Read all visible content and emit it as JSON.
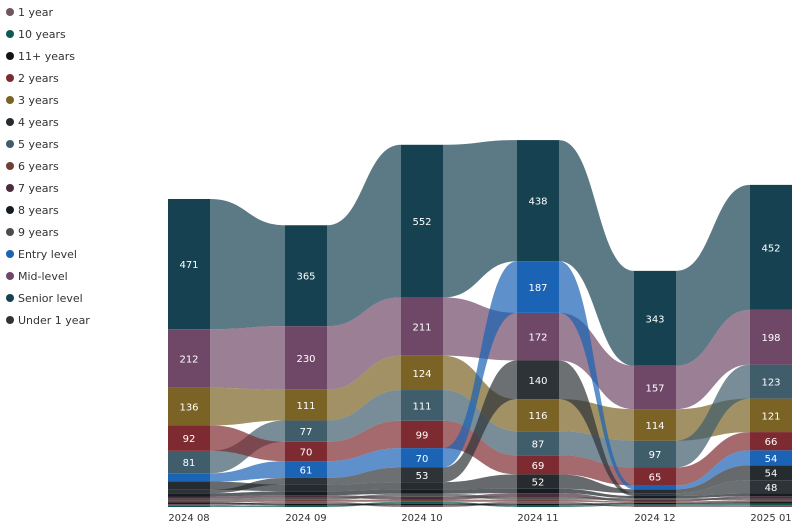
{
  "chart_data": {
    "type": "ribbon",
    "categories": [
      "2024 08",
      "2024 09",
      "2024 10",
      "2024 11",
      "2024 12",
      "2025 01"
    ],
    "legend_position": "left",
    "series": [
      {
        "name": "1 year",
        "color": "#6f5660",
        "values": [
          6,
          7,
          6,
          7,
          5,
          6
        ]
      },
      {
        "name": "10 years",
        "color": "#0c5a52",
        "values": [
          5,
          6,
          7,
          6,
          5,
          6
        ]
      },
      {
        "name": "11+ years",
        "color": "#111416",
        "values": [
          6,
          6,
          6,
          6,
          5,
          6
        ]
      },
      {
        "name": "2 years",
        "color": "#7d2b30",
        "values": [
          92,
          70,
          99,
          69,
          65,
          66
        ]
      },
      {
        "name": "3 years",
        "color": "#7a6324",
        "values": [
          136,
          111,
          124,
          116,
          114,
          121
        ]
      },
      {
        "name": "4 years",
        "color": "#252b2e",
        "values": [
          30,
          24,
          26,
          52,
          14,
          54
        ]
      },
      {
        "name": "5 years",
        "color": "#3f5d6b",
        "values": [
          81,
          77,
          111,
          87,
          97,
          123
        ]
      },
      {
        "name": "6 years",
        "color": "#6f3f35",
        "values": [
          6,
          7,
          8,
          7,
          5,
          6
        ]
      },
      {
        "name": "7 years",
        "color": "#4a2c3d",
        "values": [
          8,
          9,
          10,
          14,
          6,
          8
        ]
      },
      {
        "name": "8 years",
        "color": "#151d22",
        "values": [
          12,
          14,
          16,
          16,
          8,
          10
        ]
      },
      {
        "name": "9 years",
        "color": "#4c4c4c",
        "values": [
          7,
          8,
          11,
          10,
          6,
          7
        ]
      },
      {
        "name": "Entry level",
        "color": "#1a63b5",
        "values": [
          30,
          61,
          70,
          187,
          14,
          54
        ]
      },
      {
        "name": "Mid-level",
        "color": "#6f4868",
        "values": [
          212,
          230,
          211,
          172,
          157,
          198
        ]
      },
      {
        "name": "Senior level",
        "color": "#164151",
        "values": [
          471,
          365,
          552,
          438,
          343,
          452
        ]
      },
      {
        "name": "Under 1 year",
        "color": "#2e3338",
        "values": [
          12,
          24,
          53,
          140,
          10,
          48
        ]
      }
    ],
    "visible_labels": [
      {
        "series": "Senior level",
        "values": [
          "471",
          "365",
          "552",
          "438",
          "343",
          "452"
        ]
      },
      {
        "series": "Mid-level",
        "values": [
          "212",
          "230",
          "211",
          "172",
          "157",
          "198"
        ]
      },
      {
        "series": "3 years",
        "values": [
          "136",
          "111",
          "124",
          "116",
          "114",
          "121"
        ]
      },
      {
        "series": "5 years",
        "values": [
          "81",
          "77",
          "111",
          "87",
          "97",
          "123"
        ]
      },
      {
        "series": "2 years",
        "values": [
          "92",
          "70",
          "99",
          "69",
          "65",
          "66"
        ]
      },
      {
        "series": "Entry level",
        "values": [
          "",
          "61",
          "70",
          "187",
          "",
          "54"
        ]
      },
      {
        "series": "Under 1 year",
        "values": [
          "",
          "",
          "53",
          "140",
          "",
          "48"
        ]
      },
      {
        "series": "4 years",
        "values": [
          "",
          "",
          "",
          "52",
          "",
          "54"
        ]
      }
    ]
  }
}
